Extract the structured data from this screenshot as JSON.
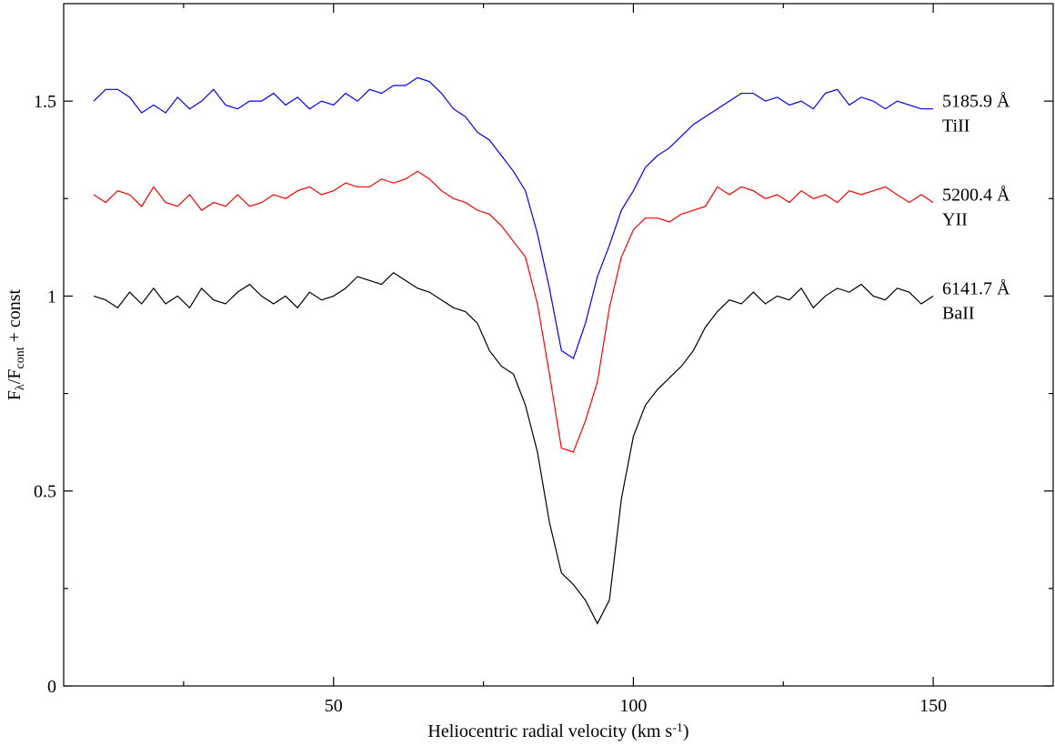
{
  "chart_data": {
    "type": "line",
    "xlabel_parts": [
      "Heliocentric radial velocity (km s",
      "-1",
      ")"
    ],
    "ylabel_parts": [
      "F",
      "λ",
      "/F",
      "cont",
      " + const"
    ],
    "xlim": [
      5,
      170
    ],
    "ylim": [
      0,
      1.75
    ],
    "xticks": [
      50,
      100,
      150
    ],
    "yticks": [
      0,
      0.5,
      1,
      1.5
    ],
    "xminorticks": [
      25,
      75,
      125
    ],
    "yminorticks": [
      0.25,
      0.75,
      1.25
    ],
    "x": [
      10,
      12,
      14,
      16,
      18,
      20,
      22,
      24,
      26,
      28,
      30,
      32,
      34,
      36,
      38,
      40,
      42,
      44,
      46,
      48,
      50,
      52,
      54,
      56,
      58,
      60,
      62,
      64,
      66,
      68,
      70,
      72,
      74,
      76,
      78,
      80,
      82,
      84,
      86,
      88,
      90,
      92,
      94,
      96,
      98,
      100,
      102,
      104,
      106,
      108,
      110,
      112,
      114,
      116,
      118,
      120,
      122,
      124,
      126,
      128,
      130,
      132,
      134,
      136,
      138,
      140,
      142,
      144,
      146,
      148,
      150
    ],
    "series": [
      {
        "name": "TiII",
        "label": "5185.9 Å",
        "color": "#0000ff",
        "values": [
          1.5,
          1.53,
          1.53,
          1.51,
          1.47,
          1.49,
          1.47,
          1.51,
          1.48,
          1.5,
          1.53,
          1.49,
          1.48,
          1.5,
          1.5,
          1.52,
          1.49,
          1.51,
          1.48,
          1.5,
          1.49,
          1.52,
          1.5,
          1.53,
          1.52,
          1.54,
          1.54,
          1.56,
          1.55,
          1.52,
          1.48,
          1.46,
          1.42,
          1.4,
          1.36,
          1.32,
          1.27,
          1.16,
          1.02,
          0.86,
          0.84,
          0.93,
          1.05,
          1.13,
          1.22,
          1.27,
          1.33,
          1.36,
          1.38,
          1.41,
          1.44,
          1.46,
          1.48,
          1.5,
          1.52,
          1.52,
          1.5,
          1.51,
          1.49,
          1.5,
          1.48,
          1.52,
          1.53,
          1.49,
          1.51,
          1.5,
          1.48,
          1.5,
          1.49,
          1.48,
          1.48
        ]
      },
      {
        "name": "YII",
        "label": "5200.4 Å",
        "color": "#ff0000",
        "values": [
          1.26,
          1.24,
          1.27,
          1.26,
          1.23,
          1.28,
          1.24,
          1.23,
          1.26,
          1.22,
          1.24,
          1.23,
          1.26,
          1.23,
          1.24,
          1.26,
          1.25,
          1.27,
          1.28,
          1.26,
          1.27,
          1.29,
          1.28,
          1.28,
          1.3,
          1.29,
          1.3,
          1.32,
          1.3,
          1.27,
          1.25,
          1.24,
          1.22,
          1.21,
          1.18,
          1.14,
          1.1,
          0.98,
          0.8,
          0.61,
          0.6,
          0.68,
          0.78,
          0.97,
          1.1,
          1.17,
          1.2,
          1.2,
          1.19,
          1.21,
          1.22,
          1.23,
          1.28,
          1.26,
          1.28,
          1.27,
          1.25,
          1.26,
          1.24,
          1.27,
          1.25,
          1.26,
          1.24,
          1.27,
          1.26,
          1.27,
          1.28,
          1.26,
          1.24,
          1.26,
          1.24
        ]
      },
      {
        "name": "BaII",
        "label": "6141.7 Å",
        "color": "#000000",
        "values": [
          1.0,
          0.99,
          0.97,
          1.01,
          0.98,
          1.02,
          0.98,
          1.0,
          0.97,
          1.02,
          0.99,
          0.98,
          1.01,
          1.03,
          1.0,
          0.98,
          1.0,
          0.97,
          1.01,
          0.99,
          1.0,
          1.02,
          1.05,
          1.04,
          1.03,
          1.06,
          1.04,
          1.02,
          1.01,
          0.99,
          0.97,
          0.96,
          0.93,
          0.86,
          0.82,
          0.8,
          0.72,
          0.6,
          0.42,
          0.29,
          0.26,
          0.22,
          0.16,
          0.22,
          0.48,
          0.64,
          0.72,
          0.76,
          0.79,
          0.82,
          0.86,
          0.92,
          0.96,
          0.99,
          0.98,
          1.01,
          0.98,
          1.0,
          0.99,
          1.02,
          0.97,
          1.0,
          1.02,
          1.01,
          1.03,
          1.0,
          0.99,
          1.02,
          1.01,
          0.98,
          1.0
        ]
      }
    ]
  }
}
